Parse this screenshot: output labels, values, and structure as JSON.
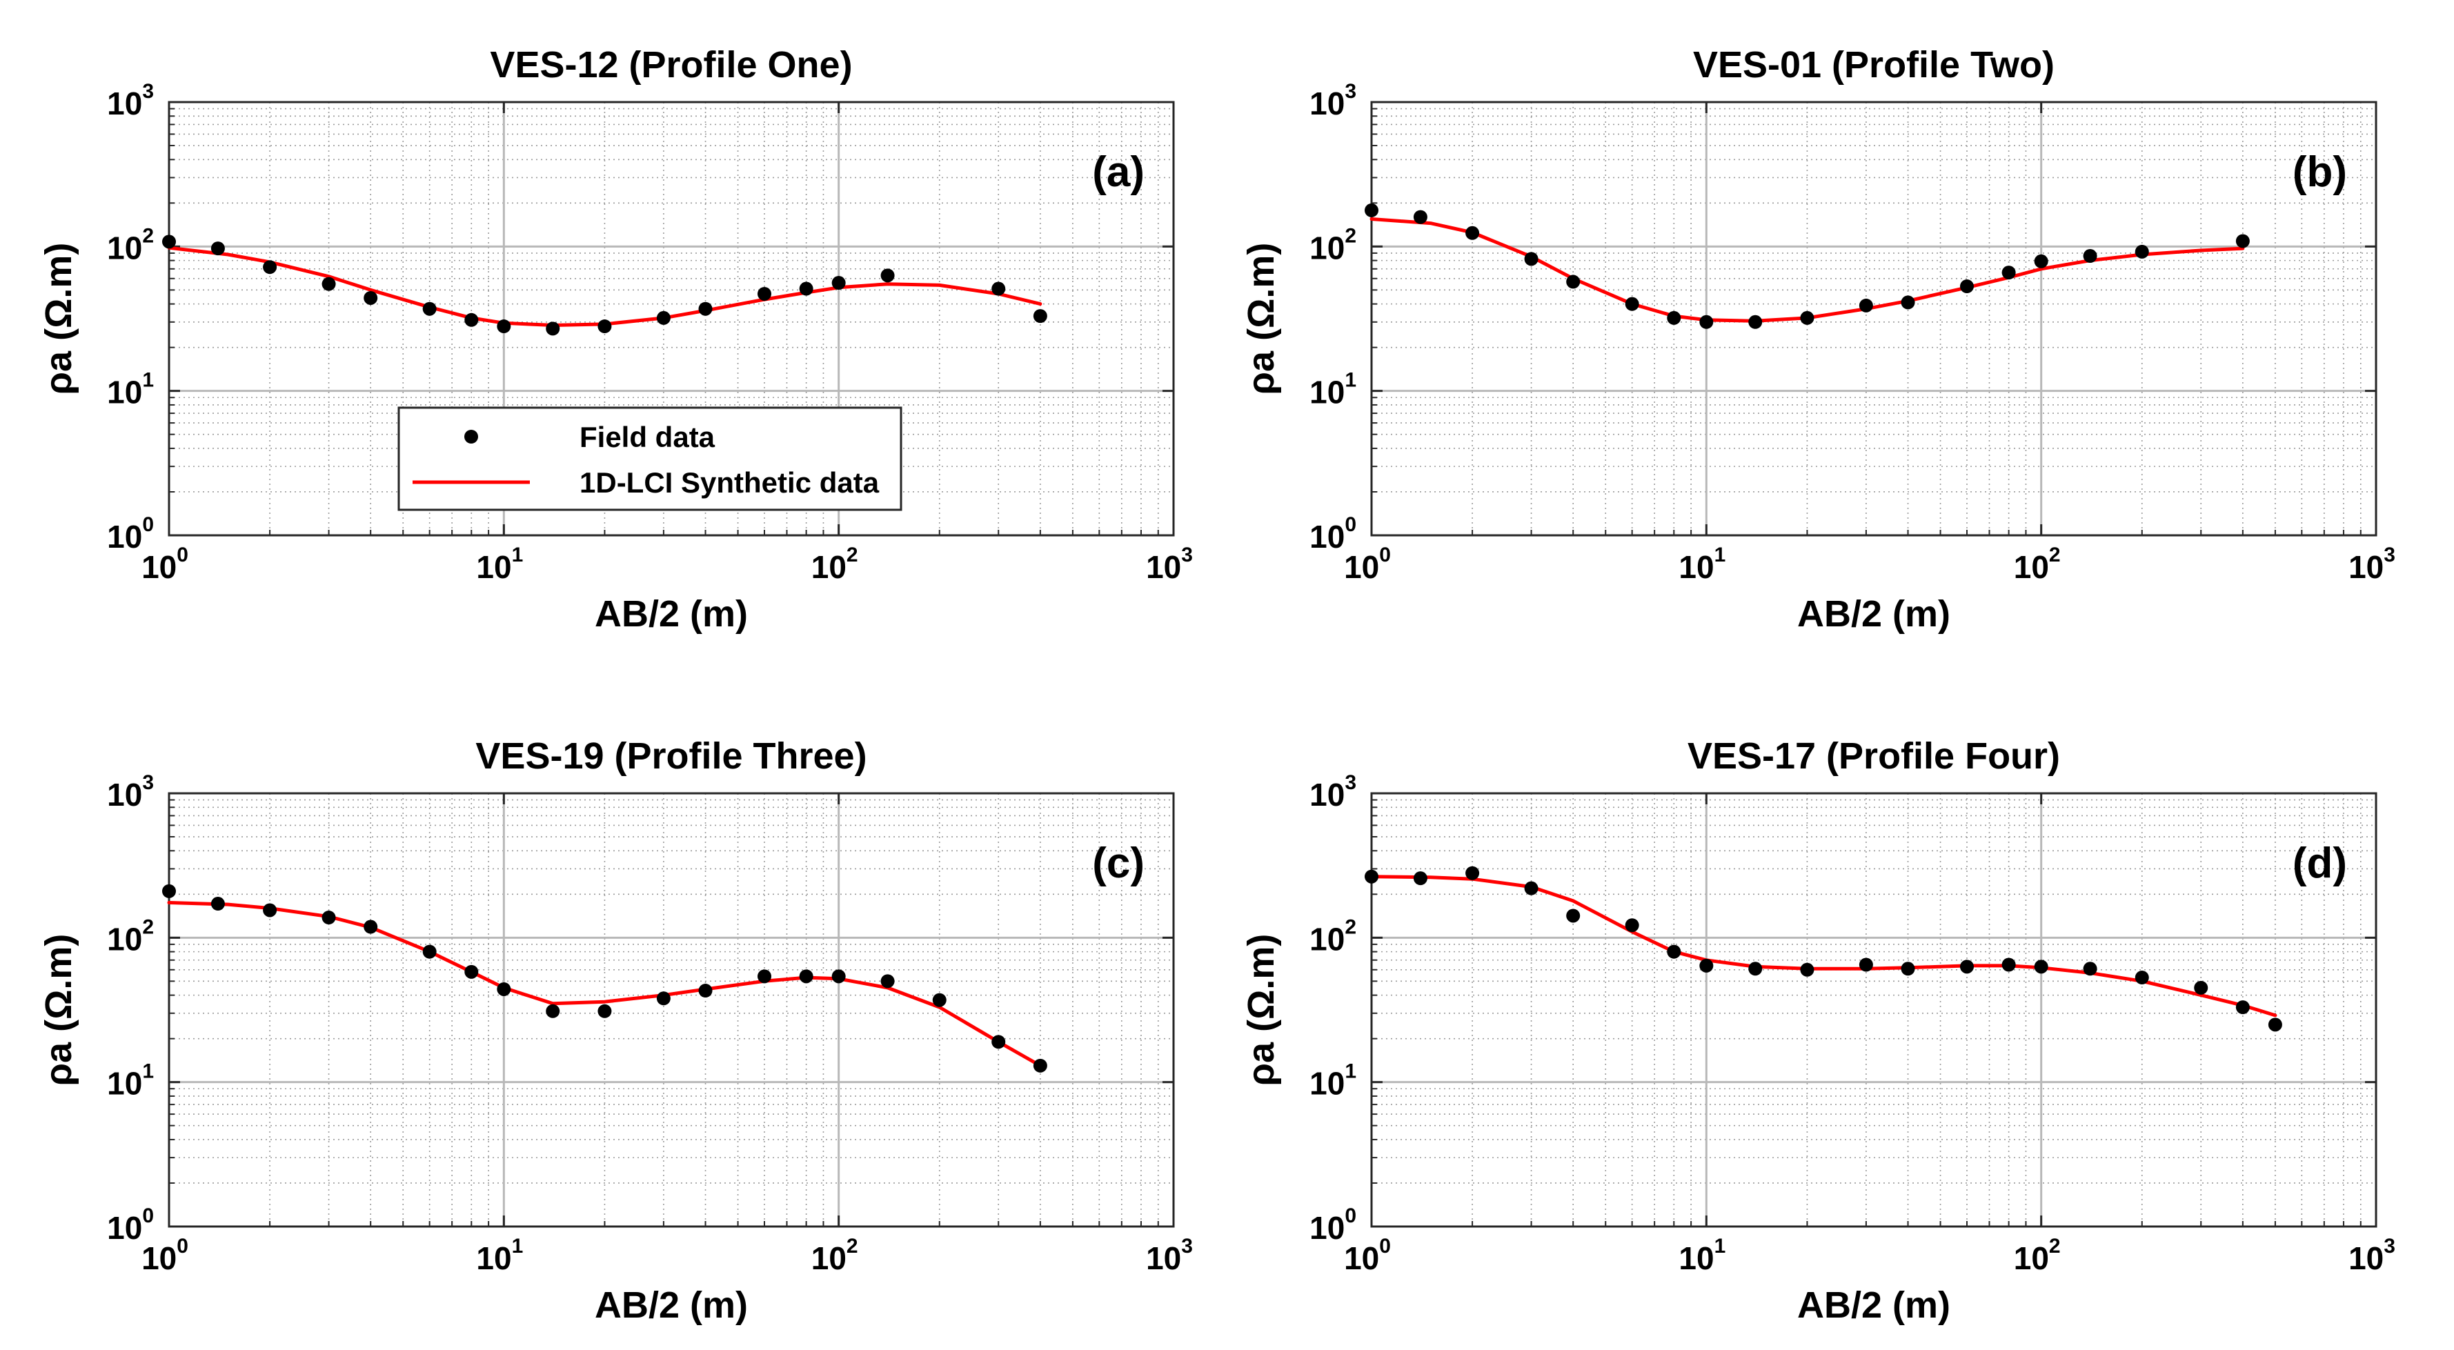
{
  "colors": {
    "field": "#000000",
    "synthetic": "#ff0000",
    "grid": "#b8b8b8",
    "axis": "#262626"
  },
  "legend": {
    "field_label": "Field data",
    "synthetic_label": "1D-LCI Synthetic data"
  },
  "chart_data": [
    {
      "type": "line",
      "title": "VES-12 (Profile One)",
      "panel": "(a)",
      "xlabel": "AB/2 (m)",
      "ylabel": "ρa (Ω.m)",
      "xscale": "log",
      "yscale": "log",
      "xlim": [
        1,
        1000
      ],
      "ylim": [
        1,
        1000
      ],
      "xticks": [
        {
          "base": "10",
          "exp": "0"
        },
        {
          "base": "10",
          "exp": "1"
        },
        {
          "base": "10",
          "exp": "2"
        },
        {
          "base": "10",
          "exp": "3"
        }
      ],
      "yticks": [
        {
          "base": "10",
          "exp": "0"
        },
        {
          "base": "10",
          "exp": "1"
        },
        {
          "base": "10",
          "exp": "2"
        },
        {
          "base": "10",
          "exp": "3"
        }
      ],
      "grid": true,
      "has_legend": true,
      "legend_position": "lower-left",
      "series": [
        {
          "name": "Field data",
          "kind": "scatter",
          "x": [
            1,
            1.4,
            2,
            3,
            4,
            6,
            8,
            10,
            14,
            20,
            30,
            40,
            60,
            80,
            100,
            140,
            300,
            400
          ],
          "y": [
            108,
            97,
            72,
            55,
            44,
            37,
            31,
            28,
            27,
            28,
            32,
            37,
            47,
            51,
            56,
            63,
            51,
            33
          ]
        },
        {
          "name": "1D-LCI Synthetic data",
          "kind": "line",
          "x": [
            1,
            1.5,
            2,
            3,
            4,
            6,
            8,
            10,
            14,
            20,
            30,
            40,
            60,
            80,
            100,
            140,
            200,
            300,
            400
          ],
          "y": [
            98,
            88,
            78,
            62,
            50,
            38,
            32,
            29.5,
            28.5,
            29,
            32,
            36,
            43,
            48,
            52,
            55,
            54,
            47,
            40
          ]
        }
      ]
    },
    {
      "type": "line",
      "title": "VES-01 (Profile Two)",
      "panel": "(b)",
      "xlabel": "AB/2 (m)",
      "ylabel": "ρa (Ω.m)",
      "xscale": "log",
      "yscale": "log",
      "xlim": [
        1,
        1000
      ],
      "ylim": [
        1,
        1000
      ],
      "xticks": [
        {
          "base": "10",
          "exp": "0"
        },
        {
          "base": "10",
          "exp": "1"
        },
        {
          "base": "10",
          "exp": "2"
        },
        {
          "base": "10",
          "exp": "3"
        }
      ],
      "yticks": [
        {
          "base": "10",
          "exp": "0"
        },
        {
          "base": "10",
          "exp": "1"
        },
        {
          "base": "10",
          "exp": "2"
        },
        {
          "base": "10",
          "exp": "3"
        }
      ],
      "grid": true,
      "has_legend": false,
      "series": [
        {
          "name": "Field data",
          "kind": "scatter",
          "x": [
            1,
            1.4,
            2,
            3,
            4,
            6,
            8,
            10,
            14,
            20,
            30,
            40,
            60,
            80,
            100,
            140,
            200,
            400
          ],
          "y": [
            178,
            160,
            124,
            82,
            57,
            40,
            32,
            30,
            30,
            32,
            39,
            41,
            53,
            66,
            79,
            86,
            92,
            109
          ]
        },
        {
          "name": "1D-LCI Synthetic data",
          "kind": "line",
          "x": [
            1,
            1.5,
            2,
            3,
            4,
            6,
            8,
            10,
            14,
            20,
            30,
            40,
            60,
            80,
            100,
            140,
            200,
            300,
            400
          ],
          "y": [
            155,
            145,
            125,
            85,
            60,
            40,
            33,
            31,
            30.5,
            32,
            37,
            42,
            52,
            61,
            70,
            80,
            88,
            94,
            97
          ]
        }
      ]
    },
    {
      "type": "line",
      "title": "VES-19 (Profile Three)",
      "panel": "(c)",
      "xlabel": "AB/2 (m)",
      "ylabel": "ρa (Ω.m)",
      "xscale": "log",
      "yscale": "log",
      "xlim": [
        1,
        1000
      ],
      "ylim": [
        1,
        1000
      ],
      "xticks": [
        {
          "base": "10",
          "exp": "0"
        },
        {
          "base": "10",
          "exp": "1"
        },
        {
          "base": "10",
          "exp": "2"
        },
        {
          "base": "10",
          "exp": "3"
        }
      ],
      "yticks": [
        {
          "base": "10",
          "exp": "0"
        },
        {
          "base": "10",
          "exp": "1"
        },
        {
          "base": "10",
          "exp": "2"
        },
        {
          "base": "10",
          "exp": "3"
        }
      ],
      "grid": true,
      "has_legend": false,
      "series": [
        {
          "name": "Field data",
          "kind": "scatter",
          "x": [
            1,
            1.4,
            2,
            3,
            4,
            6,
            8,
            10,
            14,
            20,
            30,
            40,
            60,
            80,
            100,
            140,
            200,
            300,
            400
          ],
          "y": [
            210,
            172,
            155,
            138,
            119,
            80,
            58,
            44,
            31,
            31,
            38,
            43,
            54,
            54,
            54,
            50,
            37,
            19,
            13
          ]
        },
        {
          "name": "1D-LCI Synthetic data",
          "kind": "line",
          "x": [
            1,
            1.5,
            2,
            3,
            4,
            6,
            8,
            10,
            14,
            20,
            30,
            40,
            60,
            80,
            100,
            140,
            200,
            300,
            400
          ],
          "y": [
            175,
            170,
            160,
            140,
            118,
            80,
            58,
            45,
            35,
            36,
            40,
            44,
            50,
            53,
            52,
            45,
            33,
            19,
            13
          ]
        }
      ]
    },
    {
      "type": "line",
      "title": "VES-17 (Profile Four)",
      "panel": "(d)",
      "xlabel": "AB/2 (m)",
      "ylabel": "ρa (Ω.m)",
      "xscale": "log",
      "yscale": "log",
      "xlim": [
        1,
        1000
      ],
      "ylim": [
        1,
        1000
      ],
      "xticks": [
        {
          "base": "10",
          "exp": "0"
        },
        {
          "base": "10",
          "exp": "1"
        },
        {
          "base": "10",
          "exp": "2"
        },
        {
          "base": "10",
          "exp": "3"
        }
      ],
      "yticks": [
        {
          "base": "10",
          "exp": "0"
        },
        {
          "base": "10",
          "exp": "1"
        },
        {
          "base": "10",
          "exp": "2"
        },
        {
          "base": "10",
          "exp": "3"
        }
      ],
      "grid": true,
      "has_legend": false,
      "series": [
        {
          "name": "Field data",
          "kind": "scatter",
          "x": [
            1,
            1.4,
            2,
            3,
            4,
            6,
            8,
            10,
            14,
            20,
            30,
            40,
            60,
            80,
            100,
            140,
            200,
            300,
            400,
            500
          ],
          "y": [
            265,
            258,
            280,
            220,
            142,
            122,
            80,
            64,
            61,
            60,
            65,
            61,
            63,
            65,
            63,
            61,
            53,
            45,
            33,
            25
          ]
        },
        {
          "name": "1D-LCI Synthetic data",
          "kind": "line",
          "x": [
            1,
            1.5,
            2,
            3,
            4,
            6,
            8,
            10,
            14,
            20,
            30,
            40,
            60,
            80,
            100,
            140,
            200,
            300,
            400,
            500
          ],
          "y": [
            265,
            262,
            255,
            225,
            180,
            110,
            80,
            70,
            63,
            61,
            61,
            62,
            64,
            64,
            62,
            57,
            50,
            40,
            34,
            29
          ]
        }
      ]
    }
  ]
}
